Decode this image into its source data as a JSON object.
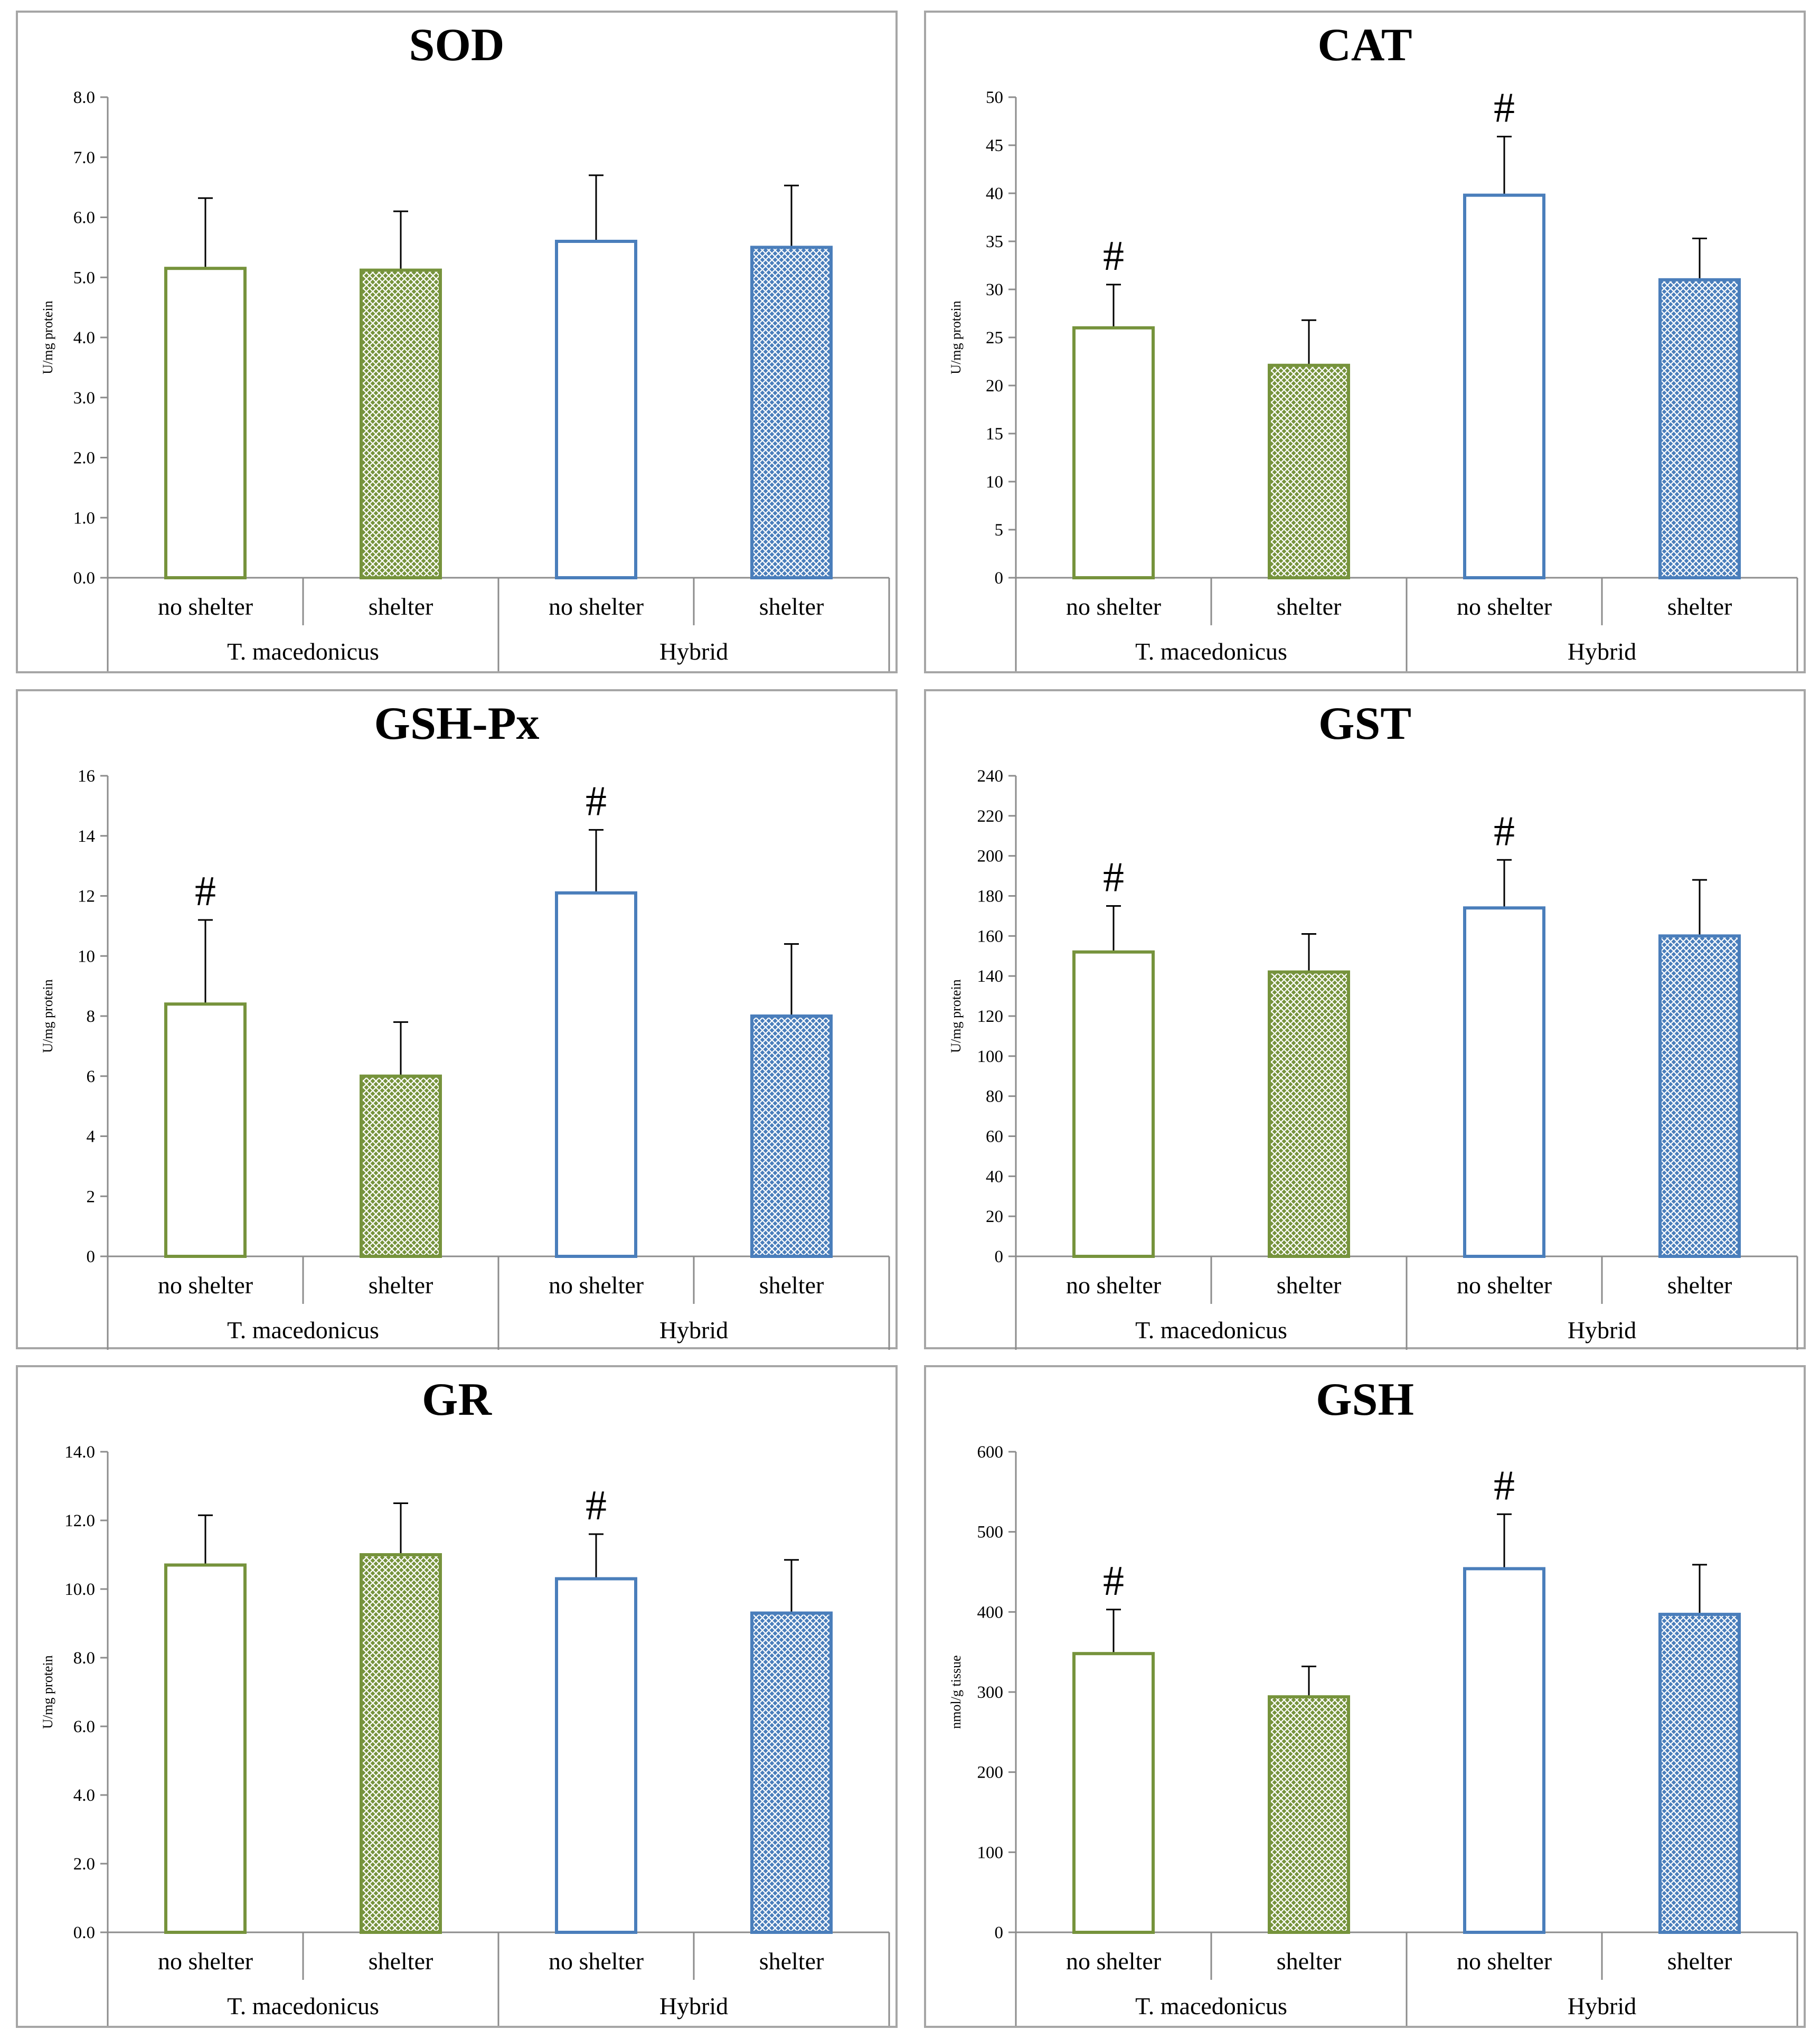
{
  "colors": {
    "green": "#76933c",
    "blue": "#4a7ebb",
    "axis": "#8c8c8c",
    "text": "#000000"
  },
  "chart_data": [
    {
      "type": "bar",
      "title": "SOD",
      "ylabel": "U/mg protein",
      "ylim": [
        0,
        8
      ],
      "yticks": [
        "0.0",
        "1.0",
        "2.0",
        "3.0",
        "4.0",
        "5.0",
        "6.0",
        "7.0",
        "8.0"
      ],
      "groups": [
        "T. macedonicus",
        "Hybrid"
      ],
      "categories": [
        "no shelter",
        "shelter",
        "no shelter",
        "shelter"
      ],
      "values": [
        5.15,
        5.12,
        5.6,
        5.5
      ],
      "errors": [
        1.17,
        0.98,
        1.1,
        1.03
      ],
      "marks": [
        "",
        "",
        "",
        ""
      ]
    },
    {
      "type": "bar",
      "title": "CAT",
      "ylabel": "U/mg protein",
      "ylim": [
        0,
        50
      ],
      "yticks": [
        "0",
        "5",
        "10",
        "15",
        "20",
        "25",
        "30",
        "35",
        "40",
        "45",
        "50"
      ],
      "groups": [
        "T. macedonicus",
        "Hybrid"
      ],
      "categories": [
        "no shelter",
        "shelter",
        "no shelter",
        "shelter"
      ],
      "values": [
        26,
        22.1,
        39.8,
        31
      ],
      "errors": [
        4.5,
        4.7,
        6.1,
        4.3
      ],
      "marks": [
        "#",
        "",
        "#",
        ""
      ]
    },
    {
      "type": "bar",
      "title": "GSH-Px",
      "ylabel": "U/mg protein",
      "ylim": [
        0,
        16
      ],
      "yticks": [
        "0",
        "2",
        "4",
        "6",
        "8",
        "10",
        "12",
        "14",
        "16"
      ],
      "groups": [
        "T. macedonicus",
        "Hybrid"
      ],
      "categories": [
        "no shelter",
        "shelter",
        "no shelter",
        "shelter"
      ],
      "values": [
        8.4,
        6.0,
        12.1,
        8.0
      ],
      "errors": [
        2.8,
        1.8,
        2.1,
        2.4
      ],
      "marks": [
        "#",
        "",
        "#",
        ""
      ]
    },
    {
      "type": "bar",
      "title": "GST",
      "ylabel": "U/mg protein",
      "ylim": [
        0,
        240
      ],
      "yticks": [
        "0",
        "20",
        "40",
        "60",
        "80",
        "100",
        "120",
        "140",
        "160",
        "180",
        "200",
        "220",
        "240"
      ],
      "groups": [
        "T. macedonicus",
        "Hybrid"
      ],
      "categories": [
        "no shelter",
        "shelter",
        "no shelter",
        "shelter"
      ],
      "values": [
        152,
        142,
        174,
        160
      ],
      "errors": [
        23,
        19,
        24,
        28
      ],
      "marks": [
        "#",
        "",
        "#",
        ""
      ]
    },
    {
      "type": "bar",
      "title": "GR",
      "ylabel": "U/mg protein",
      "ylim": [
        0,
        14
      ],
      "yticks": [
        "0.0",
        "2.0",
        "4.0",
        "6.0",
        "8.0",
        "10.0",
        "12.0",
        "14.0"
      ],
      "groups": [
        "T. macedonicus",
        "Hybrid"
      ],
      "categories": [
        "no shelter",
        "shelter",
        "no shelter",
        "shelter"
      ],
      "values": [
        10.7,
        11.0,
        10.3,
        9.3
      ],
      "errors": [
        1.45,
        1.5,
        1.3,
        1.55
      ],
      "marks": [
        "",
        "",
        "#",
        ""
      ]
    },
    {
      "type": "bar",
      "title": "GSH",
      "ylabel": "nmol/g tissue",
      "ylim": [
        0,
        600
      ],
      "yticks": [
        "0",
        "100",
        "200",
        "300",
        "400",
        "500",
        "600"
      ],
      "groups": [
        "T. macedonicus",
        "Hybrid"
      ],
      "categories": [
        "no shelter",
        "shelter",
        "no shelter",
        "shelter"
      ],
      "values": [
        348,
        294,
        454,
        397
      ],
      "errors": [
        55,
        38,
        68,
        62
      ],
      "marks": [
        "#",
        "",
        "#",
        ""
      ]
    }
  ]
}
